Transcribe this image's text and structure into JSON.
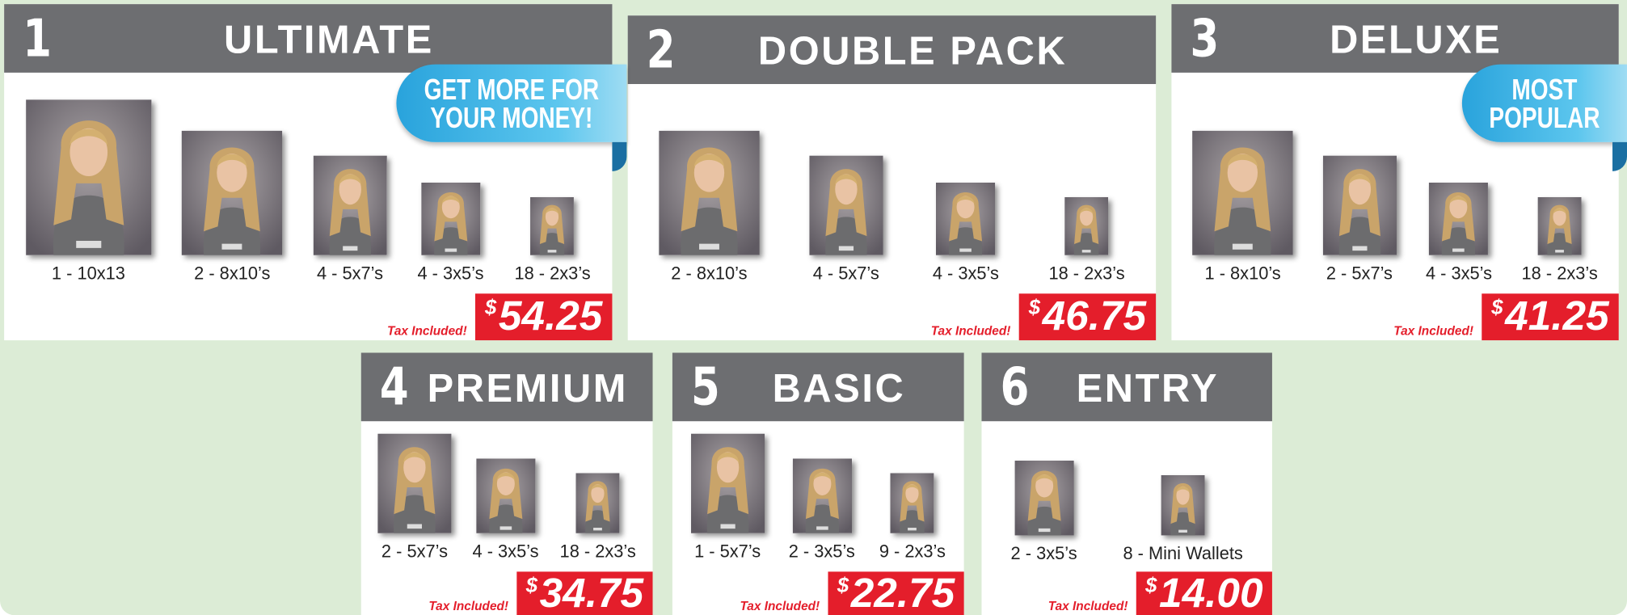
{
  "packages": [
    {
      "number": "1",
      "name": "ULTIMATE",
      "ribbon": "GET MORE FOR YOUR MONEY!",
      "items": [
        "1 - 10x13",
        "2 - 8x10’s",
        "4 - 5x7’s",
        "4 - 3x5’s",
        "18 - 2x3’s"
      ],
      "currency": "$",
      "price": "54.25",
      "tax_note": "Tax Included!"
    },
    {
      "number": "2",
      "name": "DOUBLE PACK",
      "items": [
        "2 - 8x10’s",
        "4 - 5x7’s",
        "4 - 3x5’s",
        "18 - 2x3’s"
      ],
      "currency": "$",
      "price": "46.75",
      "tax_note": "Tax Included!"
    },
    {
      "number": "3",
      "name": "DELUXE",
      "ribbon": "MOST POPULAR",
      "items": [
        "1 - 8x10’s",
        "2 - 5x7’s",
        "4 - 3x5’s",
        "18 - 2x3’s"
      ],
      "currency": "$",
      "price": "41.25",
      "tax_note": "Tax Included!"
    },
    {
      "number": "4",
      "name": "PREMIUM",
      "items": [
        "2 - 5x7’s",
        "4 - 3x5’s",
        "18 - 2x3’s"
      ],
      "currency": "$",
      "price": "34.75",
      "tax_note": "Tax Included!"
    },
    {
      "number": "5",
      "name": "BASIC",
      "items": [
        "1 - 5x7’s",
        "2 - 3x5’s",
        "9 - 2x3’s"
      ],
      "currency": "$",
      "price": "22.75",
      "tax_note": "Tax Included!"
    },
    {
      "number": "6",
      "name": "ENTRY",
      "items": [
        "2 - 3x5’s",
        "8 - Mini Wallets"
      ],
      "currency": "$",
      "price": "14.00",
      "tax_note": "Tax Included!"
    }
  ]
}
